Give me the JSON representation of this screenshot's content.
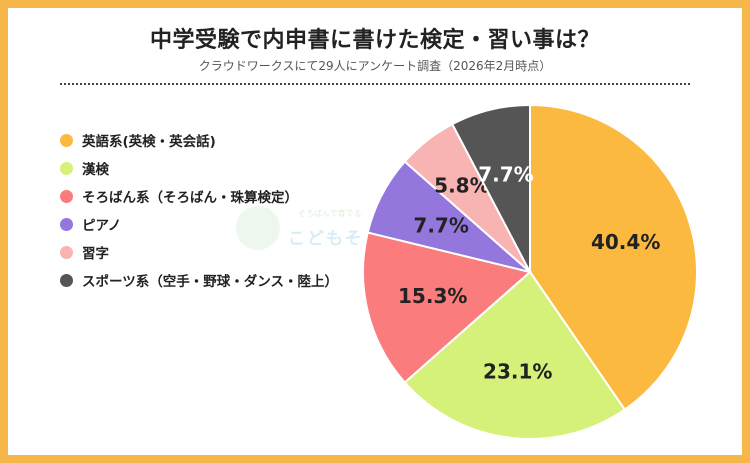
{
  "title": "中学受験で内申書に書けた検定・習い事は？",
  "subtitle": "クラウドワークスにて29人にアンケート調査（2026年2月時点）",
  "watermark": {
    "small": "そろばんで育てる",
    "text": "こどもそろ"
  },
  "chart_data": {
    "type": "pie",
    "title": "中学受験で内申書に書けた検定・習い事は？",
    "subtitle": "クラウドワークスにて29人にアンケート調査（2026年2月時点）",
    "unit": "%",
    "start_angle_deg": 0,
    "direction": "clockwise",
    "legend_position": "left",
    "slices": [
      {
        "label": "英語系(英検・英会話)",
        "value": 40.4,
        "display": "40.4%",
        "color": "#fbb93f",
        "label_color": "#222222"
      },
      {
        "label": "漢検",
        "value": 23.1,
        "display": "23.1%",
        "color": "#d5f17a",
        "label_color": "#222222"
      },
      {
        "label": "そろばん系（そろばん・珠算検定）",
        "value": 15.3,
        "display": "15.3%",
        "color": "#fa7c7c",
        "label_color": "#222222"
      },
      {
        "label": "ピアノ",
        "value": 7.7,
        "display": "7.7%",
        "color": "#9477dd",
        "label_color": "#222222"
      },
      {
        "label": "習字",
        "value": 5.8,
        "display": "5.8%",
        "color": "#f8b3b3",
        "label_color": "#222222"
      },
      {
        "label": "スポーツ系（空手・野球・ダンス・陸上）",
        "value": 7.7,
        "display": "7.7%",
        "color": "#555555",
        "label_color": "#ffffff"
      }
    ]
  }
}
